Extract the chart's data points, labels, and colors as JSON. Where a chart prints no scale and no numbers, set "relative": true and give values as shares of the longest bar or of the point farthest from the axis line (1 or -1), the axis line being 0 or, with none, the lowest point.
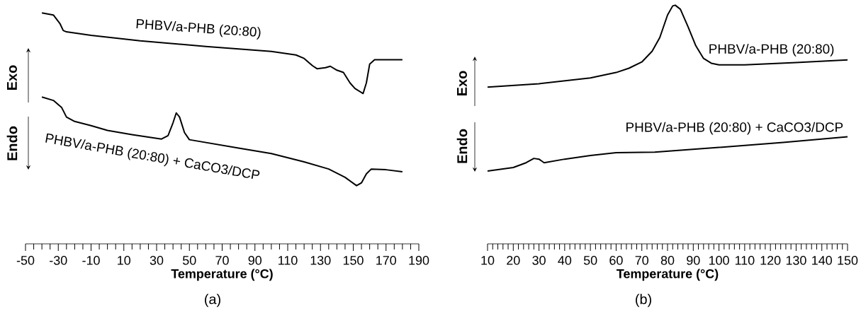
{
  "chart_data": [
    {
      "type": "line",
      "relative": true,
      "xlabel": "Temperature (°C)",
      "xlim": [
        -50,
        190
      ],
      "xticks": [
        -50,
        -30,
        -10,
        10,
        30,
        50,
        70,
        90,
        110,
        130,
        150,
        170,
        190
      ],
      "annotations": [
        "Exo",
        "Endo",
        "(a)"
      ],
      "series": [
        {
          "name": "PHBV/a-PHB (20:80)",
          "color": "#000000",
          "x": [
            -40,
            -33,
            -29,
            -27,
            -25,
            -10,
            20,
            60,
            100,
            115,
            120,
            125,
            128,
            133,
            136,
            140,
            144,
            148,
            151,
            156,
            158,
            160,
            163,
            180
          ],
          "values": [
            1.0,
            0.991,
            0.954,
            0.924,
            0.918,
            0.903,
            0.879,
            0.855,
            0.833,
            0.818,
            0.803,
            0.772,
            0.758,
            0.763,
            0.769,
            0.752,
            0.742,
            0.697,
            0.673,
            0.651,
            0.697,
            0.778,
            0.797,
            0.797
          ]
        },
        {
          "name": "PHBV/a-PHB (20:80) + CaCO3/DCP",
          "color": "#000000",
          "x": [
            -40,
            -33,
            -28,
            -25,
            -20,
            -10,
            0,
            15,
            33,
            37,
            40,
            42,
            44,
            47,
            50,
            60,
            80,
            100,
            120,
            135,
            145,
            152,
            155,
            158,
            161,
            170,
            180
          ],
          "values": [
            0.636,
            0.621,
            0.591,
            0.549,
            0.53,
            0.512,
            0.491,
            0.473,
            0.454,
            0.469,
            0.524,
            0.567,
            0.549,
            0.482,
            0.451,
            0.439,
            0.415,
            0.391,
            0.355,
            0.324,
            0.288,
            0.252,
            0.264,
            0.303,
            0.324,
            0.321,
            0.312
          ]
        }
      ]
    },
    {
      "type": "line",
      "relative": true,
      "xlabel": "Temperature (°C)",
      "xlim": [
        10,
        150
      ],
      "xticks": [
        10,
        20,
        30,
        40,
        50,
        60,
        70,
        80,
        90,
        100,
        110,
        120,
        130,
        140,
        150
      ],
      "annotations": [
        "Exo",
        "Endo",
        "(b)"
      ],
      "series": [
        {
          "name": "PHBV/a-PHB (20:80)",
          "color": "#000000",
          "x": [
            10,
            30,
            50,
            60,
            65,
            70,
            74,
            77,
            80,
            82,
            83,
            85,
            88,
            91,
            94,
            97,
            100,
            110,
            130,
            150
          ],
          "values": [
            0.657,
            0.671,
            0.695,
            0.718,
            0.736,
            0.762,
            0.807,
            0.865,
            0.959,
            0.997,
            1.0,
            0.983,
            0.909,
            0.83,
            0.777,
            0.757,
            0.75,
            0.75,
            0.76,
            0.771
          ]
        },
        {
          "name": "PHBV/a-PHB (20:80) + CaCO3/DCP",
          "color": "#000000",
          "x": [
            10,
            20,
            25,
            28,
            30,
            32,
            40,
            50,
            60,
            75,
            100,
            125,
            150
          ],
          "values": [
            0.305,
            0.32,
            0.34,
            0.358,
            0.355,
            0.34,
            0.355,
            0.37,
            0.382,
            0.384,
            0.404,
            0.425,
            0.449
          ]
        }
      ]
    }
  ]
}
